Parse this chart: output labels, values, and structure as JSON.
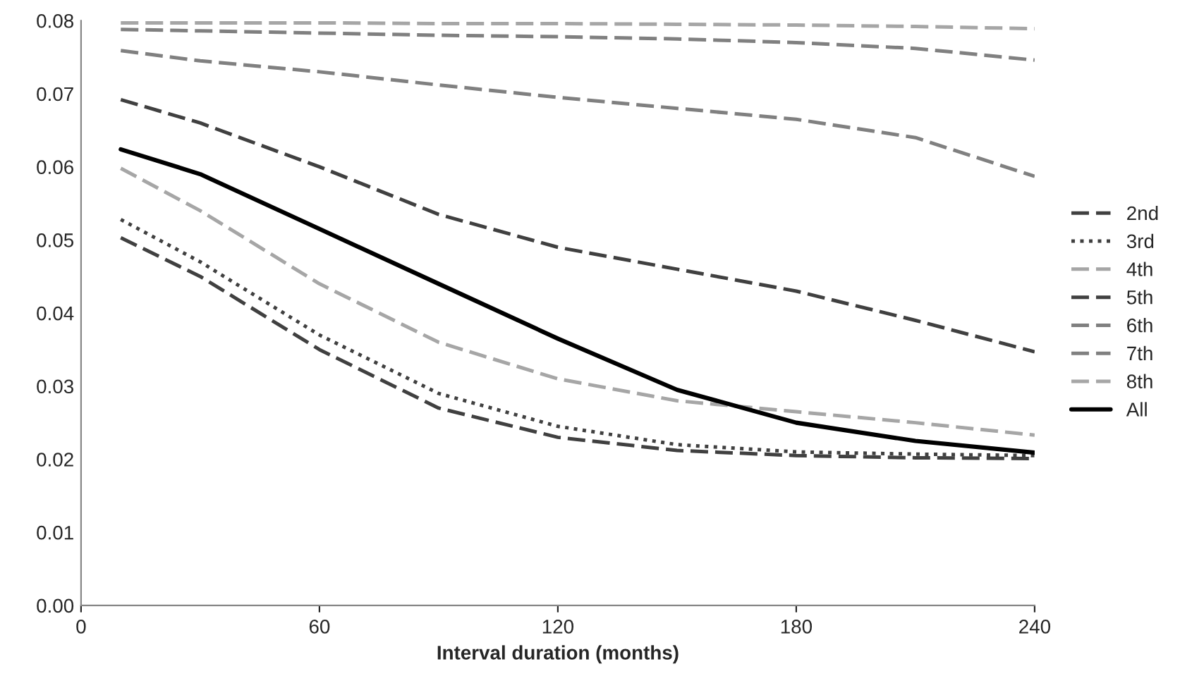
{
  "chart_data": {
    "type": "line",
    "xlabel": "Interval duration (months)",
    "xlim": [
      0,
      240
    ],
    "xticks": [
      0,
      60,
      120,
      180,
      240
    ],
    "ylim": [
      0,
      0.08
    ],
    "yticks": [
      {
        "value": 0,
        "label": "0.00"
      },
      {
        "value": 0.01,
        "label": "0.01"
      },
      {
        "value": 0.02,
        "label": "0.02"
      },
      {
        "value": 0.03,
        "label": "0.03"
      },
      {
        "value": 0.04,
        "label": "0.04"
      },
      {
        "value": 0.05,
        "label": "0.05"
      },
      {
        "value": 0.06,
        "label": "0.06"
      },
      {
        "value": 0.07,
        "label": "0.07"
      },
      {
        "value": 0.08,
        "label": "0.08"
      }
    ],
    "grid": false,
    "legend": "right",
    "marker": "none",
    "x": [
      10,
      30,
      60,
      90,
      120,
      150,
      180,
      210,
      240
    ],
    "series": [
      {
        "name": "2nd",
        "color": "#404040",
        "line_style": "dashed",
        "values": [
          0.0503,
          0.045,
          0.035,
          0.027,
          0.023,
          0.0212,
          0.0205,
          0.0202,
          0.0201
        ]
      },
      {
        "name": "3rd",
        "color": "#404040",
        "line_style": "dotted",
        "values": [
          0.0528,
          0.047,
          0.037,
          0.029,
          0.0245,
          0.022,
          0.021,
          0.0207,
          0.0205
        ]
      },
      {
        "name": "4th",
        "color": "#a6a6a6",
        "line_style": "dashed",
        "values": [
          0.0598,
          0.054,
          0.044,
          0.036,
          0.031,
          0.028,
          0.0265,
          0.025,
          0.0233
        ]
      },
      {
        "name": "5th",
        "color": "#404040",
        "line_style": "dashed",
        "values": [
          0.0692,
          0.066,
          0.06,
          0.0535,
          0.049,
          0.046,
          0.043,
          0.039,
          0.0347
        ]
      },
      {
        "name": "6th",
        "color": "#808080",
        "line_style": "dashed",
        "values": [
          0.0759,
          0.0745,
          0.073,
          0.0712,
          0.0695,
          0.068,
          0.0665,
          0.064,
          0.0587
        ]
      },
      {
        "name": "7th",
        "color": "#808080",
        "line_style": "dashed",
        "values": [
          0.0788,
          0.0786,
          0.0783,
          0.078,
          0.0778,
          0.0775,
          0.077,
          0.0762,
          0.0746
        ]
      },
      {
        "name": "8th",
        "color": "#a6a6a6",
        "line_style": "dashed",
        "values": [
          0.0797,
          0.0797,
          0.0797,
          0.0796,
          0.0796,
          0.0795,
          0.0794,
          0.0792,
          0.0789
        ]
      },
      {
        "name": "All",
        "color": "#000000",
        "line_style": "solid",
        "values": [
          0.0624,
          0.059,
          0.0515,
          0.044,
          0.0365,
          0.0295,
          0.025,
          0.0225,
          0.0209
        ]
      }
    ]
  }
}
